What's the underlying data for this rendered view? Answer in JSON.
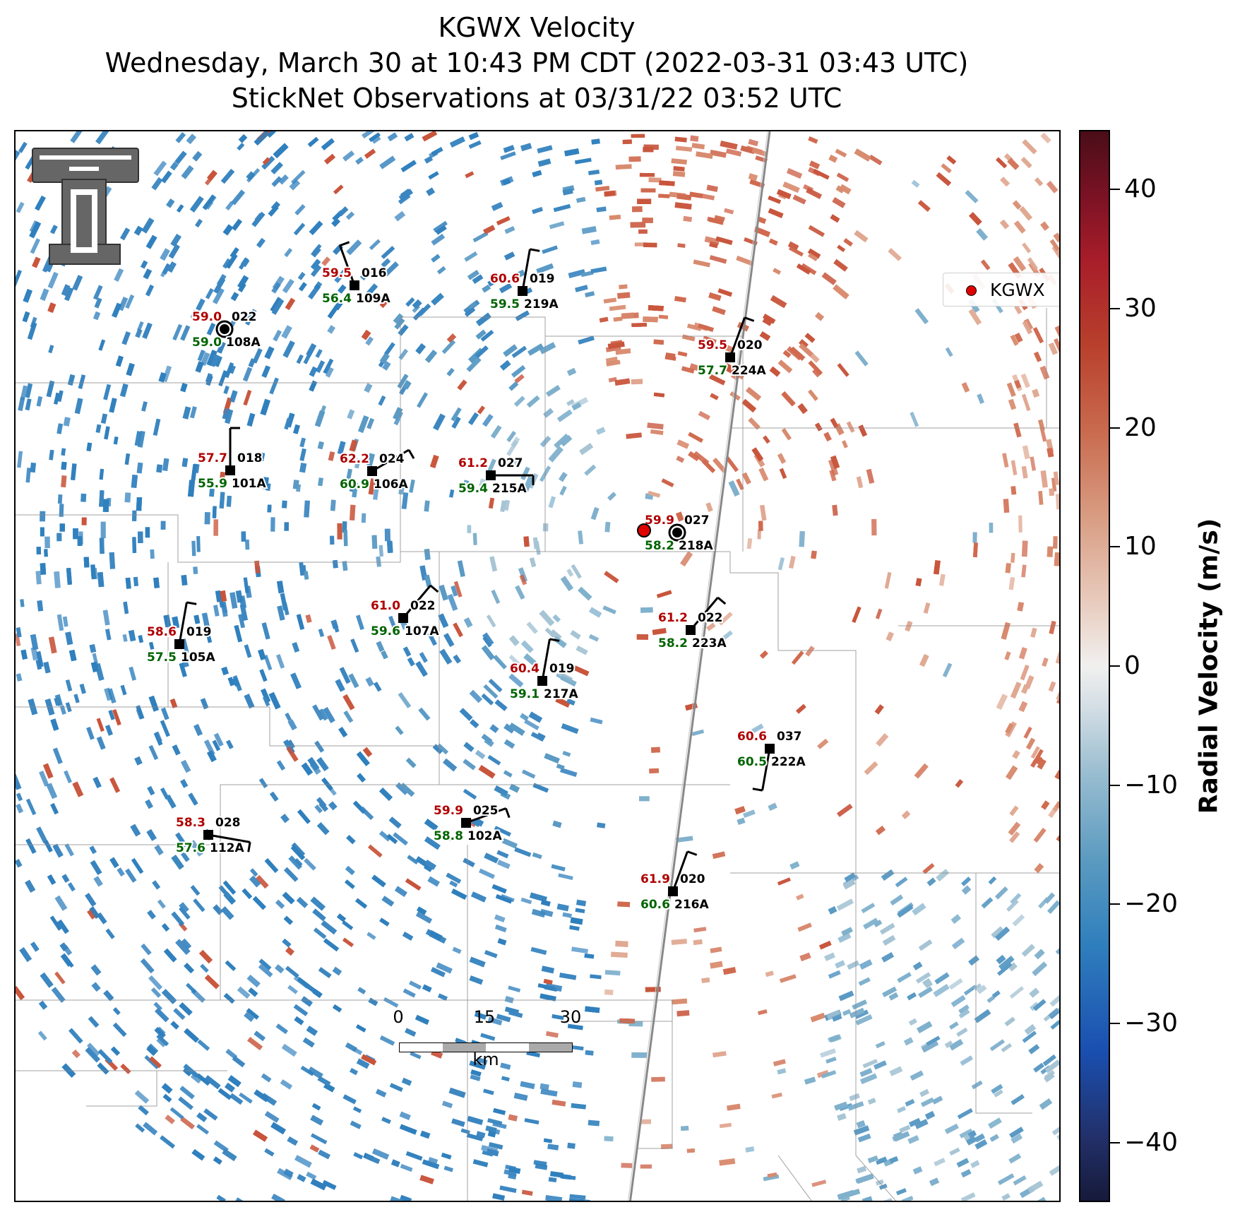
{
  "titles": {
    "line1": "KGWX Velocity",
    "line2": "Wednesday, March 30 at 10:43 PM CDT (2022-03-31 03:43 UTC)",
    "line3": "StickNet Observations at 03/31/22 03:52 UTC"
  },
  "legend": {
    "label": "KGWX",
    "marker_color": "#e00000"
  },
  "colorbar": {
    "label": "Radial Velocity (m/s)",
    "range": [
      -45,
      45
    ],
    "ticks": [
      {
        "value": 40,
        "label": "40"
      },
      {
        "value": 30,
        "label": "30"
      },
      {
        "value": 20,
        "label": "20"
      },
      {
        "value": 10,
        "label": "10"
      },
      {
        "value": 0,
        "label": "0"
      },
      {
        "value": -10,
        "label": "−10"
      },
      {
        "value": -20,
        "label": "−20"
      },
      {
        "value": -30,
        "label": "−30"
      },
      {
        "value": -40,
        "label": "−40"
      }
    ]
  },
  "scalebar": {
    "ticks": [
      "0",
      "15",
      "30"
    ],
    "unit": "km"
  },
  "colors": {
    "temperature": "#b00000",
    "dewpoint": "#006400",
    "inbound": "#2f7fbd",
    "outbound": "#c8553c"
  },
  "stations": [
    {
      "id": "108A",
      "temp": "59.0",
      "dew": "59.0",
      "wind_dir": "022",
      "calm": true
    },
    {
      "id": "109A",
      "temp": "59.5",
      "dew": "56.4",
      "wind_dir": "016",
      "calm": false
    },
    {
      "id": "219A",
      "temp": "60.6",
      "dew": "59.5",
      "wind_dir": "019",
      "calm": false
    },
    {
      "id": "224A",
      "temp": "59.5",
      "dew": "57.7",
      "wind_dir": "020",
      "calm": false
    },
    {
      "id": "101A",
      "temp": "57.7",
      "dew": "55.9",
      "wind_dir": "018",
      "calm": false
    },
    {
      "id": "106A",
      "temp": "62.2",
      "dew": "60.9",
      "wind_dir": "024",
      "calm": false
    },
    {
      "id": "215A",
      "temp": "61.2",
      "dew": "59.4",
      "wind_dir": "027",
      "calm": false
    },
    {
      "id": "218A",
      "temp": "59.9",
      "dew": "58.2",
      "wind_dir": "027",
      "calm": true
    },
    {
      "id": "107A",
      "temp": "61.0",
      "dew": "59.6",
      "wind_dir": "022",
      "calm": false
    },
    {
      "id": "223A",
      "temp": "61.2",
      "dew": "58.2",
      "wind_dir": "022",
      "calm": false
    },
    {
      "id": "105A",
      "temp": "58.6",
      "dew": "57.5",
      "wind_dir": "019",
      "calm": false
    },
    {
      "id": "217A",
      "temp": "60.4",
      "dew": "59.1",
      "wind_dir": "019",
      "calm": false
    },
    {
      "id": "222A",
      "temp": "60.6",
      "dew": "60.5",
      "wind_dir": "037",
      "calm": false
    },
    {
      "id": "102A",
      "temp": "59.9",
      "dew": "58.8",
      "wind_dir": "025",
      "calm": false
    },
    {
      "id": "112A",
      "temp": "58.3",
      "dew": "57.6",
      "wind_dir": "028",
      "calm": false
    },
    {
      "id": "216A",
      "temp": "61.9",
      "dew": "60.6",
      "wind_dir": "020",
      "calm": false
    }
  ]
}
